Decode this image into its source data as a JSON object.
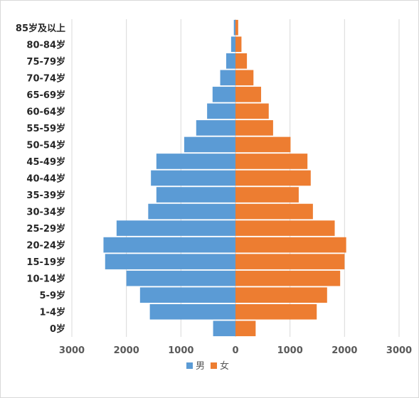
{
  "chart_data": {
    "type": "bar",
    "orientation": "horizontal",
    "layout": "population-pyramid",
    "categories": [
      "85岁及以上",
      "80-84岁",
      "75-79岁",
      "70-74岁",
      "65-69岁",
      "60-64岁",
      "55-59岁",
      "50-54岁",
      "45-49岁",
      "40-44岁",
      "35-39岁",
      "30-34岁",
      "25-29岁",
      "20-24岁",
      "15-19岁",
      "10-14岁",
      "5-9岁",
      "1-4岁",
      "0岁"
    ],
    "series": [
      {
        "name": "男",
        "color": "#5b9bd5",
        "side": "left",
        "values": [
          30,
          80,
          170,
          280,
          420,
          520,
          720,
          940,
          1450,
          1550,
          1450,
          1600,
          2180,
          2420,
          2390,
          2000,
          1750,
          1570,
          410
        ]
      },
      {
        "name": "女",
        "color": "#ed7d31",
        "side": "right",
        "values": [
          50,
          110,
          210,
          330,
          470,
          610,
          690,
          1010,
          1320,
          1380,
          1160,
          1420,
          1820,
          2030,
          2000,
          1920,
          1680,
          1490,
          370
        ]
      }
    ],
    "xlim": [
      -3000,
      3000
    ],
    "xticks": [
      -3000,
      -2000,
      -1000,
      0,
      1000,
      2000,
      3000
    ],
    "xtick_labels": [
      "3000",
      "2000",
      "1000",
      "0",
      "1000",
      "2000",
      "3000"
    ],
    "grid": "vertical",
    "legend": {
      "position": "bottom",
      "entries": [
        "男",
        "女"
      ]
    },
    "title": "",
    "xlabel": "",
    "ylabel": ""
  }
}
